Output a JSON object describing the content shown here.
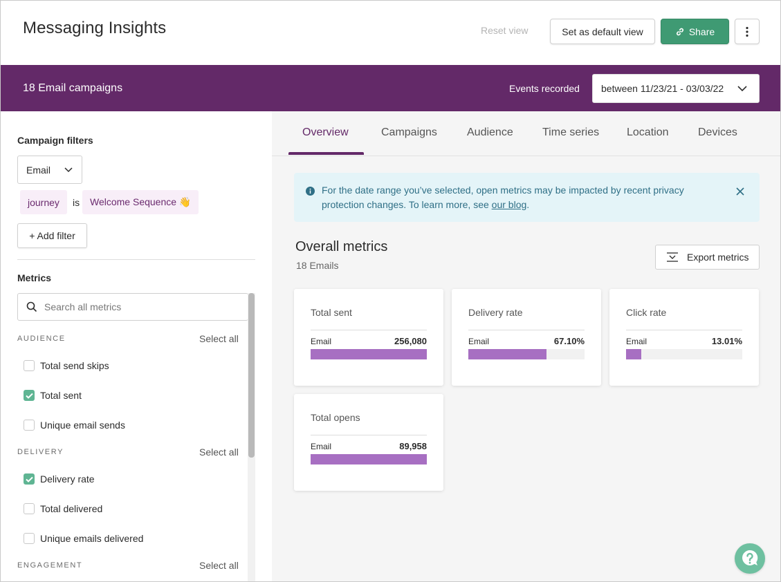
{
  "header": {
    "title": "Messaging Insights",
    "reset_label": "Reset view",
    "default_view_label": "Set as default view",
    "share_label": "Share"
  },
  "campaign_bar": {
    "count_label": "18 Email campaigns",
    "events_label": "Events recorded",
    "date_range": "between 11/23/21 - 03/03/22"
  },
  "sidebar": {
    "filters_title": "Campaign filters",
    "channel_value": "Email",
    "filter_field": "journey",
    "filter_operator": "is",
    "filter_value": "Welcome Sequence 👋",
    "add_filter_label": "+ Add filter",
    "metrics_title": "Metrics",
    "search_placeholder": "Search all metrics",
    "select_all_label": "Select all",
    "groups": [
      {
        "label": "AUDIENCE",
        "items": [
          {
            "label": "Total send skips",
            "checked": false
          },
          {
            "label": "Total sent",
            "checked": true
          },
          {
            "label": "Unique email sends",
            "checked": false
          }
        ]
      },
      {
        "label": "DELIVERY",
        "items": [
          {
            "label": "Delivery rate",
            "checked": true
          },
          {
            "label": "Total delivered",
            "checked": false
          },
          {
            "label": "Unique emails delivered",
            "checked": false
          }
        ]
      },
      {
        "label": "ENGAGEMENT",
        "items": []
      }
    ]
  },
  "tabs": [
    {
      "label": "Overview",
      "active": true
    },
    {
      "label": "Campaigns",
      "active": false
    },
    {
      "label": "Audience",
      "active": false
    },
    {
      "label": "Time series",
      "active": false
    },
    {
      "label": "Location",
      "active": false
    },
    {
      "label": "Devices",
      "active": false
    }
  ],
  "notice": {
    "text": "For the date range you’ve selected, open metrics may be impacted by recent privacy protection changes. To learn more, see ",
    "link_text": "our blog",
    "suffix": "."
  },
  "overview": {
    "title": "Overall metrics",
    "subtitle": "18 Emails",
    "export_label": "Export metrics"
  },
  "cards": [
    {
      "title": "Total sent",
      "channel": "Email",
      "value": "256,080",
      "fill_fraction": 1.0
    },
    {
      "title": "Delivery rate",
      "channel": "Email",
      "value": "67.10%",
      "fill_fraction": 0.671
    },
    {
      "title": "Click rate",
      "channel": "Email",
      "value": "13.01%",
      "fill_fraction": 0.1301
    },
    {
      "title": "Total opens",
      "channel": "Email",
      "value": "89,958",
      "fill_fraction": 1.0
    }
  ],
  "colors": {
    "brand_purple": "#632968",
    "share_green": "#3f9a73",
    "bar_fill": "#a76fc2",
    "check_green": "#5fb593"
  }
}
